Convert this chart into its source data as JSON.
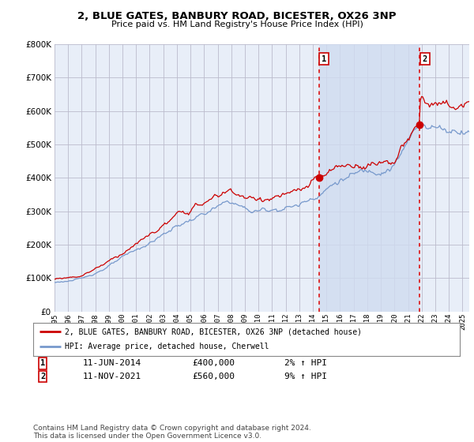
{
  "title": "2, BLUE GATES, BANBURY ROAD, BICESTER, OX26 3NP",
  "subtitle": "Price paid vs. HM Land Registry's House Price Index (HPI)",
  "ylim": [
    0,
    800000
  ],
  "yticks": [
    0,
    100000,
    200000,
    300000,
    400000,
    500000,
    600000,
    700000,
    800000
  ],
  "plot_bg": "#e8eef8",
  "hpi_color": "#7799cc",
  "price_color": "#cc0000",
  "vline_color": "#dd0000",
  "shade_color": "#d0dcf0",
  "legend_label_price": "2, BLUE GATES, BANBURY ROAD, BICESTER, OX26 3NP (detached house)",
  "legend_label_hpi": "HPI: Average price, detached house, Cherwell",
  "annotation1_label": "1",
  "annotation1_date": "11-JUN-2014",
  "annotation1_price": "£400,000",
  "annotation1_hpi": "2% ↑ HPI",
  "annotation2_label": "2",
  "annotation2_date": "11-NOV-2021",
  "annotation2_price": "£560,000",
  "annotation2_hpi": "9% ↑ HPI",
  "footer": "Contains HM Land Registry data © Crown copyright and database right 2024.\nThis data is licensed under the Open Government Licence v3.0.",
  "sale1_year": 2014.44,
  "sale1_value": 400000,
  "sale2_year": 2021.86,
  "sale2_value": 560000,
  "xmin": 1995,
  "xmax": 2025.5,
  "xticks": [
    1995,
    1996,
    1997,
    1998,
    1999,
    2000,
    2001,
    2002,
    2003,
    2004,
    2005,
    2006,
    2007,
    2008,
    2009,
    2010,
    2011,
    2012,
    2013,
    2014,
    2015,
    2016,
    2017,
    2018,
    2019,
    2020,
    2021,
    2022,
    2023,
    2024,
    2025
  ]
}
